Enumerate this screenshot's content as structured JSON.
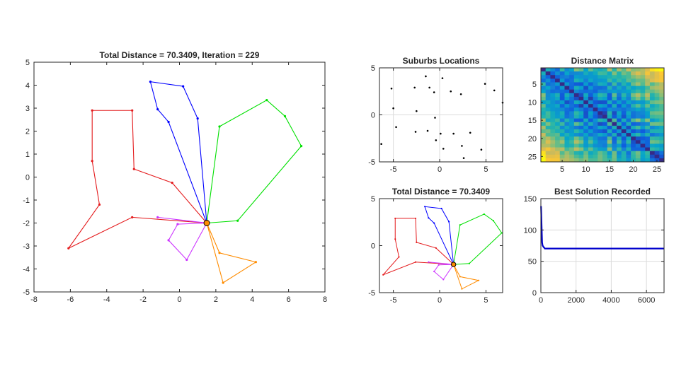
{
  "chart_data": [
    {
      "type": "line",
      "title": "Total Distance = 70.3409, Iteration = 229",
      "xlim": [
        -8,
        8
      ],
      "ylim": [
        -5,
        5
      ],
      "xticks": [
        -8,
        -6,
        -4,
        -2,
        0,
        2,
        4,
        6,
        8
      ],
      "yticks": [
        -5,
        -4,
        -3,
        -2,
        -1,
        0,
        1,
        2,
        3,
        4,
        5
      ],
      "grid": false,
      "depot": [
        1.5,
        -2.0
      ],
      "series": [
        {
          "color": "#e41a1c",
          "points": [
            [
              1.5,
              -2.0
            ],
            [
              -0.4,
              -0.25
            ],
            [
              -2.5,
              0.35
            ],
            [
              -2.6,
              2.9
            ],
            [
              -4.8,
              2.9
            ],
            [
              -4.8,
              0.7
            ],
            [
              -4.4,
              -1.2
            ],
            [
              -6.1,
              -3.1
            ],
            [
              -2.6,
              -1.75
            ],
            [
              1.5,
              -2.0
            ]
          ]
        },
        {
          "color": "#0000ff",
          "points": [
            [
              1.5,
              -2.0
            ],
            [
              -0.6,
              2.4
            ],
            [
              -1.2,
              2.95
            ],
            [
              -1.6,
              4.15
            ],
            [
              0.2,
              3.95
            ],
            [
              1.0,
              2.55
            ],
            [
              1.5,
              -2.0
            ]
          ]
        },
        {
          "color": "#00e000",
          "points": [
            [
              1.5,
              -2.0
            ],
            [
              2.2,
              2.2
            ],
            [
              4.8,
              3.35
            ],
            [
              5.8,
              2.65
            ],
            [
              6.7,
              1.35
            ],
            [
              3.2,
              -1.9
            ],
            [
              1.5,
              -2.0
            ]
          ]
        },
        {
          "color": "#ff8c00",
          "points": [
            [
              1.5,
              -2.0
            ],
            [
              2.2,
              -3.3
            ],
            [
              4.2,
              -3.7
            ],
            [
              2.4,
              -4.6
            ],
            [
              1.5,
              -2.0
            ]
          ]
        },
        {
          "color": "#cc33ff",
          "points": [
            [
              1.5,
              -2.0
            ],
            [
              -0.1,
              -2.05
            ],
            [
              -0.6,
              -2.75
            ],
            [
              0.4,
              -3.6
            ],
            [
              1.5,
              -2.0
            ],
            [
              -1.2,
              -1.75
            ],
            [
              1.5,
              -2.0
            ]
          ]
        }
      ]
    },
    {
      "type": "scatter",
      "title": "Suburbs Locations",
      "xlim": [
        -6.5,
        6.8
      ],
      "ylim": [
        -5,
        5
      ],
      "xticks": [
        -5,
        0,
        5
      ],
      "yticks": [
        -5,
        0,
        5
      ],
      "grid": true,
      "points": [
        [
          -6.3,
          -3.1
        ],
        [
          -5.2,
          2.8
        ],
        [
          -5.0,
          0.7
        ],
        [
          -4.7,
          -1.3
        ],
        [
          -2.7,
          2.9
        ],
        [
          -2.6,
          -1.8
        ],
        [
          -2.5,
          0.4
        ],
        [
          -1.5,
          4.1
        ],
        [
          -1.1,
          2.9
        ],
        [
          -1.3,
          -1.7
        ],
        [
          -0.6,
          2.4
        ],
        [
          -0.5,
          -0.3
        ],
        [
          -0.4,
          -2.7
        ],
        [
          0.1,
          -2.0
        ],
        [
          0.3,
          3.9
        ],
        [
          0.4,
          -3.6
        ],
        [
          1.2,
          2.5
        ],
        [
          1.5,
          -2.0
        ],
        [
          2.3,
          2.2
        ],
        [
          2.4,
          -3.3
        ],
        [
          2.6,
          -4.6
        ],
        [
          3.3,
          -1.9
        ],
        [
          4.5,
          -3.7
        ],
        [
          4.9,
          3.3
        ],
        [
          5.9,
          2.6
        ],
        [
          6.8,
          1.3
        ]
      ]
    },
    {
      "type": "heatmap",
      "title": "Distance Matrix",
      "size": 26,
      "xticks": [
        5,
        10,
        15,
        20,
        25
      ],
      "yticks": [
        5,
        10,
        15,
        20,
        25
      ],
      "colormap": [
        "#352a87",
        "#0f5cdd",
        "#1481d6",
        "#06a4ca",
        "#2eb7a4",
        "#87bf77",
        "#d1bb59",
        "#fec832",
        "#f9fb0e"
      ]
    },
    {
      "type": "line",
      "title": "Total Distance = 70.3409",
      "xlim": [
        -6.5,
        6.8
      ],
      "ylim": [
        -5,
        5
      ],
      "xticks": [
        -5,
        0,
        5
      ],
      "yticks": [
        -5,
        0,
        5
      ],
      "grid": false,
      "reuse_routes_of": 0
    },
    {
      "type": "line",
      "title": "Best Solution Recorded",
      "xlim": [
        0,
        7000
      ],
      "ylim": [
        0,
        150
      ],
      "xticks": [
        0,
        2000,
        4000,
        6000
      ],
      "yticks": [
        0,
        50,
        100,
        150
      ],
      "grid": true,
      "color": "#0000cc",
      "series_points": [
        [
          10,
          138
        ],
        [
          40,
          108
        ],
        [
          70,
          80
        ],
        [
          100,
          75
        ],
        [
          150,
          73
        ],
        [
          229,
          70.34
        ],
        [
          7000,
          70.34
        ]
      ]
    }
  ]
}
